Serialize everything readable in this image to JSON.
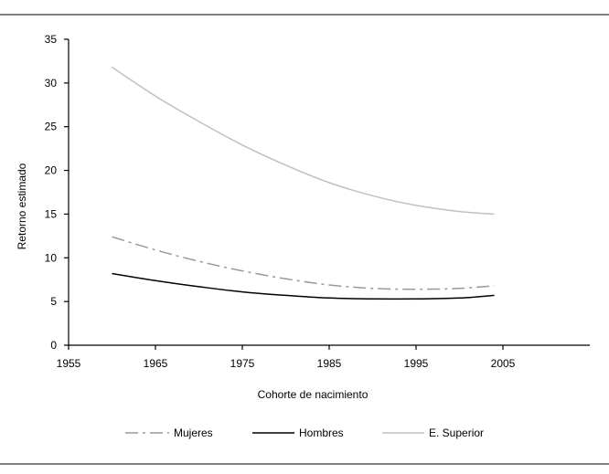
{
  "chart_data": {
    "type": "line",
    "xlabel": "Cohorte de nacimiento",
    "ylabel": "Retorno estimado",
    "xlim": [
      1955,
      2015
    ],
    "ylim": [
      0,
      35
    ],
    "xticks": [
      1955,
      1965,
      1975,
      1985,
      1995,
      2005
    ],
    "yticks": [
      0,
      5,
      10,
      15,
      20,
      25,
      30,
      35
    ],
    "grid": false,
    "legend_position": "bottom",
    "x": [
      1960,
      1965,
      1970,
      1975,
      1980,
      1985,
      1990,
      1995,
      2000,
      2004
    ],
    "series": [
      {
        "name": "Mujeres",
        "color": "#999999",
        "dash": "dash-dot",
        "values": [
          12.4,
          10.9,
          9.6,
          8.5,
          7.6,
          6.9,
          6.5,
          6.4,
          6.5,
          6.8
        ]
      },
      {
        "name": "Hombres",
        "color": "#000000",
        "dash": "solid",
        "values": [
          8.2,
          7.4,
          6.7,
          6.1,
          5.7,
          5.4,
          5.3,
          5.3,
          5.4,
          5.7
        ]
      },
      {
        "name": "E. Superior",
        "color": "#c0c0c0",
        "dash": "solid",
        "values": [
          31.8,
          28.5,
          25.6,
          22.9,
          20.6,
          18.6,
          17.1,
          16.0,
          15.3,
          15.0
        ]
      }
    ]
  }
}
